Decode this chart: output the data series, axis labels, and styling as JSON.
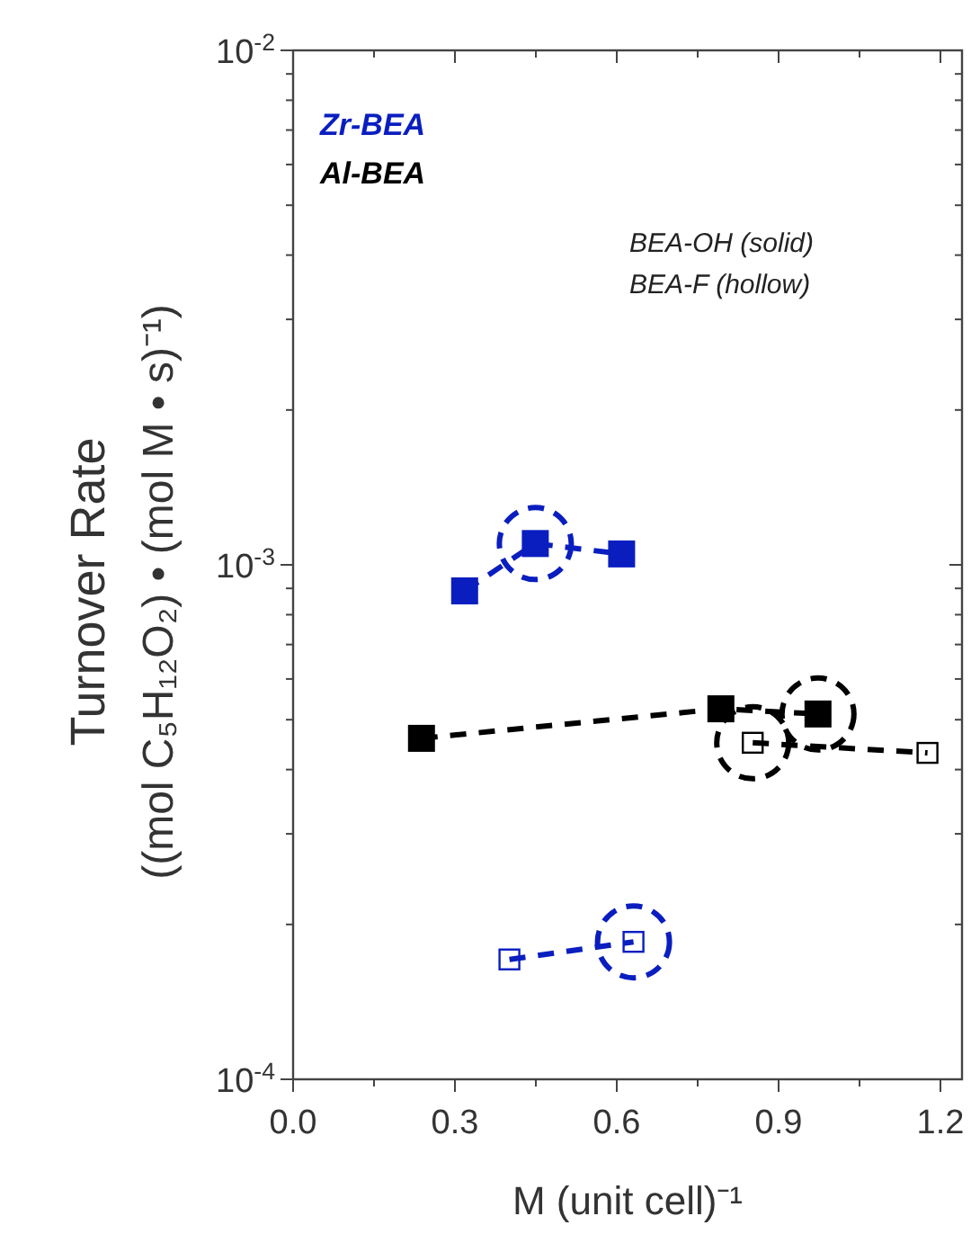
{
  "chart_data": {
    "type": "line",
    "xlabel": "M (unit cell)⁻¹",
    "ylabel": "Turnover Rate\n((mol C₅H₁₂O₂) • (mol M • s)⁻¹)",
    "annotations": [
      "Zr-BEA",
      "Al-BEA",
      "BEA-OH (solid)",
      "BEA-F (hollow)"
    ],
    "log": "y",
    "marker": "square",
    "line_style": "dashed",
    "grid": false,
    "xlim": [
      0,
      1.24
    ],
    "ylim": [
      0.0001,
      0.01
    ],
    "xticks": [
      {
        "value": 0,
        "label": "0.0"
      },
      {
        "value": 0.15,
        "label": null
      },
      {
        "value": 0.3,
        "label": "0.3"
      },
      {
        "value": 0.45,
        "label": null
      },
      {
        "value": 0.6,
        "label": "0.6"
      },
      {
        "value": 0.75,
        "label": null
      },
      {
        "value": 0.9,
        "label": "0.9"
      },
      {
        "value": 1.05,
        "label": null
      },
      {
        "value": 1.2,
        "label": "1.2"
      }
    ],
    "yticks": [
      {
        "value": 0.0001,
        "label": "10$^{-4}$"
      },
      {
        "value": 0.0002,
        "label": null
      },
      {
        "value": 0.0003,
        "label": null
      },
      {
        "value": 0.0004,
        "label": null
      },
      {
        "value": 0.0005,
        "label": null
      },
      {
        "value": 0.0006,
        "label": null
      },
      {
        "value": 0.0007,
        "label": null
      },
      {
        "value": 0.0008,
        "label": null
      },
      {
        "value": 0.0009,
        "label": null
      },
      {
        "value": 0.001,
        "label": "10$^{-3}$"
      },
      {
        "value": 0.002,
        "label": null
      },
      {
        "value": 0.003,
        "label": null
      },
      {
        "value": 0.004,
        "label": null
      },
      {
        "value": 0.005,
        "label": null
      },
      {
        "value": 0.006,
        "label": null
      },
      {
        "value": 0.007,
        "label": null
      },
      {
        "value": 0.008,
        "label": null
      },
      {
        "value": 0.009,
        "label": null
      },
      {
        "value": 0.01,
        "label": "10$^{-2}$"
      }
    ],
    "series": [
      {
        "color": "#0a1ec0",
        "x": [
          0.318,
          0.449,
          0.609
        ],
        "values": [
          0.00089,
          0.0011,
          0.00105
        ]
      },
      {
        "color": "#0a1ec0",
        "x": [
          0.401,
          0.631
        ],
        "values": [
          0.000171,
          0.000185
        ]
      },
      {
        "color": "#000000",
        "x": [
          0.238,
          0.793,
          0.973
        ],
        "values": [
          0.00046,
          0.000525,
          0.000513
        ]
      },
      {
        "color": "#000000",
        "x": [
          0.852,
          1.176
        ],
        "values": [
          0.000451,
          0.000431
        ]
      },
      {
        "type": "scatter",
        "marker": "circle",
        "color": "#0a1ec0",
        "x": [
          0.449,
          0.631
        ],
        "values": [
          0.0011,
          0.000185
        ]
      },
      {
        "type": "scatter",
        "marker": "circle",
        "color": "#000000",
        "x": [
          0.973,
          0.852
        ],
        "values": [
          0.000513,
          0.000451
        ]
      }
    ]
  }
}
